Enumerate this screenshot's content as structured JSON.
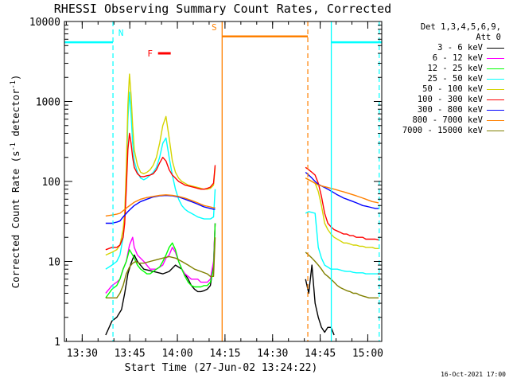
{
  "chart_data": {
    "type": "line",
    "title": "RHESSI Observing Summary Count Rates, Corrected",
    "xlabel": "Start Time (27-Jun-02 13:24:22)",
    "ylabel_parts": [
      "Corrected Count Rate (s",
      "-1",
      " detector",
      "-1",
      ")"
    ],
    "yscale": "log",
    "ylim": [
      1,
      10000
    ],
    "xlim_minutes": [
      0,
      100
    ],
    "x_unit": "minutes after 13:24:22",
    "y_ticks": [
      {
        "v": 1,
        "label": "1"
      },
      {
        "v": 10,
        "label": "10"
      },
      {
        "v": 100,
        "label": "100"
      },
      {
        "v": 1000,
        "label": "1000"
      },
      {
        "v": 10000,
        "label": "10000"
      }
    ],
    "x_ticks": [
      {
        "v": 5.6,
        "label": "13:30"
      },
      {
        "v": 20.6,
        "label": "13:45"
      },
      {
        "v": 35.6,
        "label": "14:00"
      },
      {
        "v": 50.6,
        "label": "14:15"
      },
      {
        "v": 65.6,
        "label": "14:30"
      },
      {
        "v": 80.6,
        "label": "14:45"
      },
      {
        "v": 95.6,
        "label": "15:00"
      }
    ],
    "legend_header": [
      "Det 1,3,4,5,6,9,",
      "Att 0"
    ],
    "series": [
      {
        "name": "3 - 6 keV",
        "color": "#000000",
        "x": [
          13,
          15,
          16.5,
          18,
          19,
          20,
          21,
          22,
          23,
          25,
          28,
          31,
          33,
          35,
          37,
          39,
          40,
          41,
          42,
          43,
          44,
          45,
          46,
          47,
          47.5,
          76,
          77,
          78,
          79,
          80,
          81,
          82,
          83,
          84,
          85
        ],
        "y": [
          1.2,
          1.8,
          2.0,
          2.5,
          4.0,
          7.0,
          9.5,
          12,
          10,
          8,
          7.5,
          7,
          7.5,
          9,
          8,
          6,
          5,
          4.5,
          4.2,
          4.2,
          4.3,
          4.5,
          5,
          9,
          30,
          6,
          4,
          9,
          3,
          2,
          1.5,
          1.3,
          1.5,
          1.5,
          1.2
        ]
      },
      {
        "name": "6 - 12 keV",
        "color": "#ff00ff",
        "x": [
          13,
          15,
          16.5,
          17.5,
          18.5,
          19.5,
          20.5,
          21.5,
          22,
          23,
          25,
          27,
          29,
          31,
          32,
          33,
          34,
          35,
          36,
          37,
          38,
          39,
          40,
          41,
          42,
          43,
          44,
          45,
          46,
          47,
          47.5
        ],
        "y": [
          4,
          5,
          5.5,
          6,
          8,
          10,
          16,
          20,
          15,
          12,
          10,
          8,
          8,
          9,
          11,
          12,
          15,
          13,
          10,
          8,
          7,
          6.5,
          6,
          6,
          6,
          5.5,
          5.5,
          5.5,
          6,
          10,
          30
        ]
      },
      {
        "name": "12 - 25 keV",
        "color": "#00ff00",
        "x": [
          13,
          15,
          16.5,
          17.5,
          18.5,
          19.5,
          20.5,
          21.5,
          22,
          23,
          24,
          25,
          26,
          27,
          28,
          29,
          30,
          31,
          32,
          33,
          34,
          35,
          36,
          37,
          38,
          39,
          40,
          41,
          42,
          43,
          44,
          45,
          46,
          47,
          47.5
        ],
        "y": [
          3.5,
          4.5,
          5,
          6,
          8,
          10,
          14,
          12,
          11,
          9,
          8,
          7.5,
          7,
          7,
          7.5,
          8,
          8.5,
          10,
          12,
          15,
          17,
          14,
          10,
          8,
          6.5,
          5.5,
          5,
          4.8,
          4.8,
          4.8,
          5,
          5,
          5.5,
          8,
          30
        ]
      },
      {
        "name": "25 - 50 keV",
        "color": "#00ffff",
        "x": [
          13,
          15,
          16.5,
          17.5,
          18.5,
          19,
          19.5,
          20,
          20.5,
          21,
          21.5,
          22,
          23,
          24,
          25,
          26,
          27,
          28,
          29,
          30,
          31,
          32,
          33,
          34,
          35,
          36,
          37,
          38,
          39,
          40,
          41,
          42,
          43,
          44,
          45,
          46,
          47,
          47.5,
          76,
          77,
          78,
          79,
          80,
          81,
          82,
          83,
          84,
          85,
          86,
          87,
          88,
          89,
          90,
          91,
          92,
          93,
          94,
          95,
          96,
          97,
          98,
          99
        ],
        "y": [
          8,
          9,
          10,
          12,
          20,
          35,
          100,
          600,
          1300,
          700,
          300,
          180,
          130,
          110,
          105,
          110,
          120,
          130,
          150,
          200,
          300,
          350,
          200,
          120,
          80,
          60,
          50,
          45,
          42,
          40,
          38,
          36,
          35,
          34,
          34,
          34,
          36,
          80,
          40,
          42,
          41,
          40,
          15,
          11,
          9,
          8.5,
          8,
          8,
          8,
          7.8,
          7.6,
          7.5,
          7.5,
          7.3,
          7.2,
          7.2,
          7.2,
          7,
          7,
          7,
          7,
          7
        ]
      },
      {
        "name": "50 - 100 keV",
        "color": "#d4d400",
        "x": [
          13,
          15,
          16.5,
          17.5,
          18.5,
          19,
          19.5,
          20,
          20.5,
          21,
          21.5,
          22,
          23,
          24,
          25,
          26,
          27,
          28,
          29,
          30,
          31,
          32,
          33,
          34,
          35,
          36,
          37,
          38,
          39,
          40,
          41,
          42,
          43,
          44,
          45,
          46,
          47,
          47.5,
          76,
          77,
          78,
          79,
          80,
          81,
          82,
          83,
          84,
          85,
          86,
          87,
          88,
          89,
          90,
          91,
          92,
          93,
          94,
          95,
          96,
          97,
          98,
          99
        ],
        "y": [
          12,
          13,
          14,
          16,
          25,
          40,
          150,
          900,
          2200,
          1200,
          500,
          250,
          160,
          130,
          125,
          130,
          140,
          160,
          200,
          300,
          500,
          650,
          350,
          180,
          130,
          110,
          100,
          95,
          90,
          88,
          86,
          84,
          82,
          80,
          80,
          82,
          90,
          150,
          110,
          105,
          100,
          95,
          75,
          50,
          30,
          25,
          22,
          20,
          19,
          18,
          17,
          17,
          16.5,
          16,
          16,
          15.5,
          15.5,
          15,
          15,
          15,
          14.5,
          14.5
        ]
      },
      {
        "name": "100 - 300 keV",
        "color": "#ff0000",
        "x": [
          13,
          15,
          16.5,
          17.5,
          18.5,
          19,
          19.5,
          20,
          20.5,
          21,
          21.5,
          22,
          23,
          24,
          25,
          26,
          27,
          28,
          29,
          30,
          31,
          32,
          33,
          34,
          35,
          36,
          37,
          38,
          39,
          40,
          41,
          42,
          43,
          44,
          45,
          46,
          47,
          47.5,
          76,
          77,
          78,
          79,
          80,
          81,
          82,
          83,
          84,
          85,
          86,
          87,
          88,
          89,
          90,
          91,
          92,
          93,
          94,
          95,
          96,
          97,
          98,
          99
        ],
        "y": [
          14,
          15,
          15,
          16,
          20,
          30,
          80,
          250,
          400,
          300,
          200,
          150,
          125,
          115,
          115,
          118,
          120,
          125,
          140,
          170,
          200,
          180,
          140,
          120,
          110,
          100,
          95,
          90,
          88,
          86,
          84,
          82,
          80,
          80,
          82,
          85,
          95,
          160,
          150,
          140,
          130,
          120,
          95,
          65,
          40,
          30,
          27,
          25,
          24,
          23,
          22,
          22,
          21,
          21,
          20,
          20,
          20,
          19,
          19,
          19,
          19,
          18.5
        ]
      },
      {
        "name": "300 - 800 keV",
        "color": "#0000ff",
        "x": [
          13,
          15,
          16.5,
          17.5,
          18.5,
          20,
          22,
          24,
          26,
          28,
          30,
          32,
          34,
          36,
          38,
          40,
          42,
          44,
          46,
          47,
          47.5,
          76,
          77,
          78,
          79,
          80,
          81,
          82,
          83,
          84,
          85,
          86,
          87,
          88,
          89,
          90,
          91,
          92,
          93,
          94,
          95,
          96,
          97,
          98,
          99
        ],
        "y": [
          30,
          30,
          31,
          32,
          36,
          42,
          50,
          56,
          60,
          64,
          66,
          67,
          66,
          64,
          60,
          56,
          52,
          48,
          46,
          45,
          45,
          130,
          120,
          110,
          100,
          92,
          88,
          84,
          80,
          76,
          72,
          68,
          65,
          62,
          60,
          58,
          56,
          54,
          52,
          50,
          49,
          48,
          47,
          46,
          46
        ]
      },
      {
        "name": "800 - 7000 keV",
        "color": "#ff8000",
        "x": [
          13,
          15,
          16.5,
          17.5,
          18.5,
          20,
          22,
          24,
          26,
          28,
          30,
          32,
          34,
          36,
          38,
          40,
          42,
          44,
          46,
          47,
          47.5,
          76,
          77,
          78,
          79,
          80,
          81,
          82,
          83,
          84,
          85,
          86,
          87,
          88,
          89,
          90,
          91,
          92,
          93,
          94,
          95,
          96,
          97,
          98,
          99
        ],
        "y": [
          37,
          38,
          39,
          40,
          43,
          48,
          55,
          60,
          63,
          65,
          67,
          68,
          67,
          65,
          62,
          58,
          54,
          50,
          48,
          47,
          47,
          110,
          105,
          100,
          95,
          90,
          88,
          86,
          84,
          82,
          80,
          78,
          76,
          74,
          72,
          70,
          68,
          66,
          64,
          62,
          60,
          58,
          56,
          55,
          54
        ]
      },
      {
        "name": "7000 - 15000 keV",
        "color": "#808000",
        "x": [
          13,
          15,
          16.5,
          17.5,
          18.5,
          19.5,
          20.5,
          21.5,
          22.5,
          23.5,
          25,
          27,
          29,
          31,
          33,
          35,
          37,
          39,
          41,
          43,
          45,
          46,
          47,
          47.5,
          76,
          77,
          78,
          79,
          80,
          81,
          82,
          83,
          84,
          85,
          86,
          87,
          88,
          89,
          90,
          91,
          92,
          93,
          94,
          95,
          96,
          97,
          98,
          99
        ],
        "y": [
          3.5,
          3.5,
          3.5,
          4,
          5,
          7,
          8.5,
          9.5,
          10,
          9.5,
          9.5,
          10,
          10.5,
          11,
          11.5,
          11,
          10,
          9,
          8,
          7.5,
          7,
          6.5,
          6.5,
          20,
          13,
          12,
          11,
          10,
          9,
          8,
          7,
          6.5,
          6,
          5.5,
          5,
          4.7,
          4.5,
          4.3,
          4.2,
          4,
          4,
          3.8,
          3.7,
          3.6,
          3.5,
          3.5,
          3.5,
          3.5
        ]
      }
    ],
    "annotations": {
      "N": {
        "label": "N",
        "color": "#00ffff",
        "top": 5500,
        "segments": [
          [
            0,
            15.3
          ],
          [
            84.1,
            100
          ]
        ],
        "dashed_x": [
          15.3,
          99.2
        ],
        "solid_x": [
          84.1
        ]
      },
      "S": {
        "label": "S",
        "color": "#ff8000",
        "top": 6500,
        "segments": [
          [
            49.7,
            76.7
          ]
        ],
        "dashed_x": [
          76.7
        ],
        "solid_x": [
          49.7
        ]
      },
      "F": {
        "label": "F",
        "color": "#ff0000",
        "value": 4000,
        "segment": [
          29.5,
          33.5
        ]
      }
    }
  },
  "footer_timestamp": "16-Oct-2021 17:00"
}
